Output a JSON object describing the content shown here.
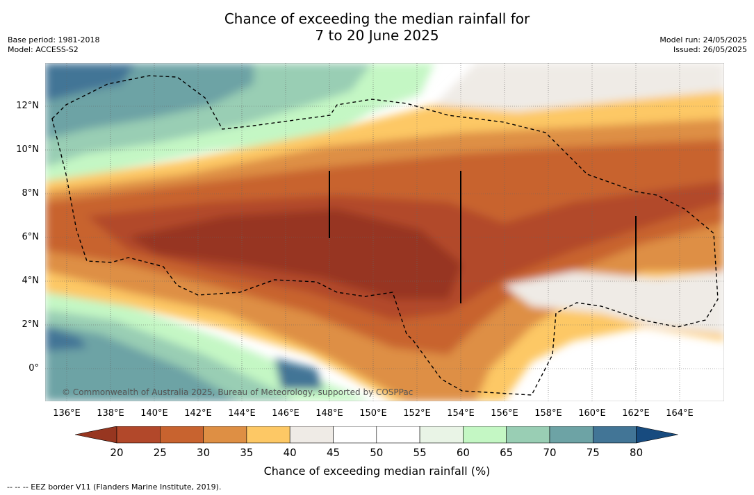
{
  "title": {
    "line1": "Chance of exceeding the median rainfall for",
    "line2": "7 to 20 June 2025"
  },
  "meta_left": {
    "base_period": "Base period: 1981-2018",
    "model": "Model: ACCESS-S2"
  },
  "meta_right": {
    "model_run": "Model run: 24/05/2025",
    "issued": "Issued: 26/05/2025"
  },
  "map": {
    "copyright": "© Commonwealth of Australia 2025, Bureau of Meteorology, supported by COSPPac",
    "lon_ticks": [
      "136°E",
      "138°E",
      "140°E",
      "142°E",
      "144°E",
      "146°E",
      "148°E",
      "150°E",
      "152°E",
      "154°E",
      "156°E",
      "158°E",
      "160°E",
      "162°E",
      "164°E"
    ],
    "lat_ticks": [
      "12°N",
      "10°N",
      "8°N",
      "6°N",
      "4°N",
      "2°N",
      "0°"
    ],
    "lon_range": [
      135,
      166
    ],
    "lat_range": [
      -1.5,
      14
    ]
  },
  "colorbar": {
    "label": "Chance of exceeding median rainfall (%)",
    "ticks": [
      "20",
      "25",
      "30",
      "35",
      "40",
      "45",
      "50",
      "55",
      "60",
      "65",
      "70",
      "75",
      "80"
    ],
    "colors": [
      "#973620",
      "#b2482a",
      "#c8632f",
      "#de8f44",
      "#fdc865",
      "#efebe6",
      "#ffffff",
      "#ffffff",
      "#e9f4e6",
      "#c4f7c4",
      "#99ceb4",
      "#6da3a5",
      "#427596",
      "#174b7f"
    ]
  },
  "footer": "--  --  -- EEZ border V11 (Flanders Marine Institute, 2019)."
}
